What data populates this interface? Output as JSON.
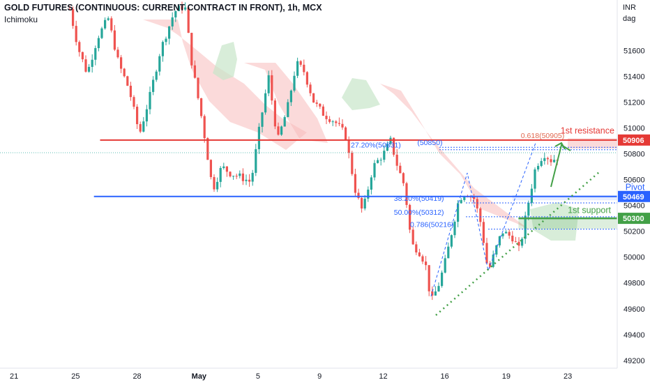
{
  "header": {
    "title": "GOLD FUTURES (CONTINUOUS: CURRENT CONTRACT IN FRONT), 1h, MCX",
    "indicator": "Ichimoku"
  },
  "colors": {
    "bull": "#26a69a",
    "bear": "#ef5350",
    "resistance": "#e53935",
    "pivot": "#2962ff",
    "support": "#43a047",
    "fib": "#2962ff",
    "fib_upper": "#e57373",
    "cloud_bear": "#f8bcbc",
    "cloud_bull": "#c8e6c9"
  },
  "chart_data": {
    "type": "candlestick",
    "y_axis": {
      "unit_top": "INR",
      "unit_bottom": "dag",
      "range": [
        49140,
        51990
      ],
      "ticks": [
        51600,
        51400,
        51200,
        51000,
        50800,
        50600,
        50400,
        50200,
        50000,
        49800,
        49600,
        49400,
        49200
      ]
    },
    "x_axis": {
      "range": [
        20.3,
        24.8
      ],
      "ticks": [
        {
          "x": 21,
          "label": "21"
        },
        {
          "x": 22,
          "label": "25"
        },
        {
          "x": 23,
          "label": "28"
        },
        {
          "x": 24,
          "label": "May"
        },
        {
          "x": 25,
          "label": "5"
        },
        {
          "x": 26,
          "label": "9"
        },
        {
          "x": 27,
          "label": "12"
        },
        {
          "x": 28,
          "label": "16"
        },
        {
          "x": 29,
          "label": "19"
        },
        {
          "x": 30,
          "label": "23"
        }
      ]
    },
    "price_labels": [
      {
        "value": 50906,
        "text": "50906",
        "role": "resistance"
      },
      {
        "value": 50469,
        "text": "50469",
        "role": "pivot"
      },
      {
        "value": 50300,
        "text": "50300",
        "role": "support"
      }
    ],
    "levels": [
      {
        "name": "1st resistance",
        "value": 50906,
        "from": 22.4,
        "role": "resistance"
      },
      {
        "name": "Pivot",
        "value": 50469,
        "from": 22.3,
        "role": "pivot"
      },
      {
        "name": "1st support",
        "value": 50300,
        "from": 29.2,
        "role": "support"
      }
    ],
    "zones": [
      {
        "from": 30.0,
        "low": 50840,
        "high": 50920,
        "role": "resistance"
      },
      {
        "from": 29.1,
        "low": 50440,
        "high": 50480,
        "role": "pivot"
      },
      {
        "from": 29.2,
        "low": 50220,
        "high": 50310,
        "role": "support"
      }
    ],
    "fib_labels": [
      {
        "text": "0.618(50905)",
        "x": 30.0,
        "value": 50905,
        "role": "fib_upper"
      },
      {
        "text": "(50850)",
        "x": 28.0,
        "value": 50850,
        "role": "fib"
      },
      {
        "text": "27.20%(50831)",
        "x": 27.3,
        "value": 50831,
        "role": "fib"
      },
      {
        "text": "38.20%(50419)",
        "x": 28.0,
        "value": 50419,
        "role": "fib"
      },
      {
        "text": "50.00%(50312)",
        "x": 28.0,
        "value": 50312,
        "role": "fib"
      },
      {
        "text": "0.786(50216)",
        "x": 28.2,
        "value": 50216,
        "role": "fib"
      }
    ],
    "annotations": [
      {
        "text": "1st resistance",
        "x": 30.9,
        "value": 50955,
        "role": "resistance"
      },
      {
        "text": "Pivot",
        "x": 31.3,
        "value": 50520,
        "role": "pivot"
      },
      {
        "text": "1st support",
        "x": 30.8,
        "value": 50340,
        "role": "support"
      }
    ]
  }
}
